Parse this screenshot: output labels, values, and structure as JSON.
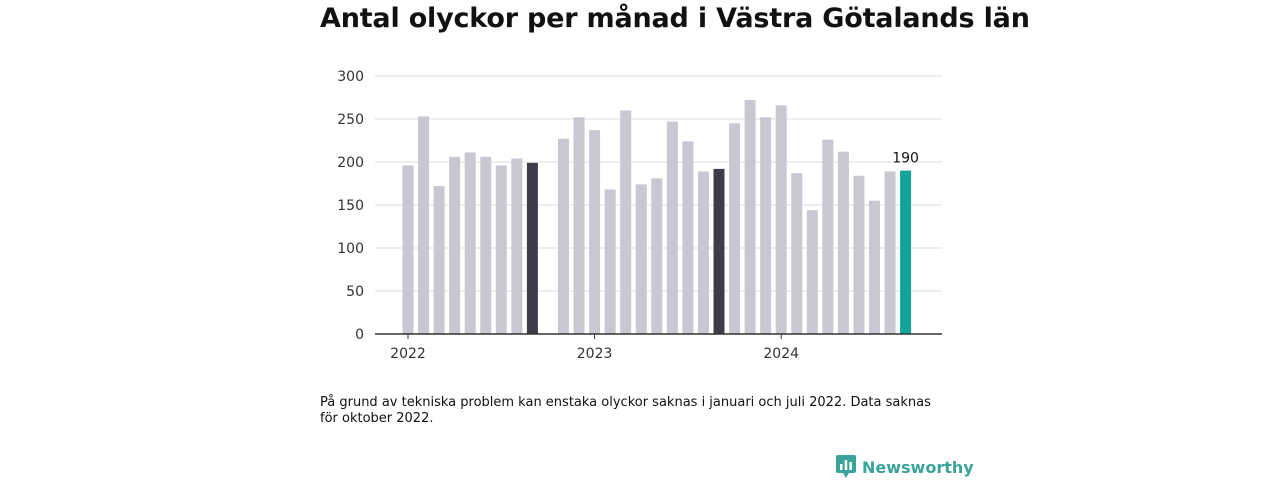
{
  "header": {
    "title": "Antal olyckor per månad i Västra Götalands län"
  },
  "footer": {
    "note": "På grund av tekniska problem kan enstaka olyckor saknas i januari och juli 2022. Data saknas för oktober 2022.",
    "brand": "Newsworthy"
  },
  "colors": {
    "bar_default": "#c9c7d2",
    "bar_highlight": "#3d3c49",
    "bar_latest": "#12a39a",
    "grid": "#dcdcdc",
    "baseline": "#333333",
    "brand": "#3aa39a"
  },
  "chart_data": {
    "type": "bar",
    "title": "Antal olyckor per månad i Västra Götalands län",
    "xlabel": "",
    "ylabel": "",
    "ylim": [
      0,
      300
    ],
    "y_ticks": [
      0,
      50,
      100,
      150,
      200,
      250,
      300
    ],
    "x_tick_labels": [
      {
        "label": "2022",
        "month": "2022-01"
      },
      {
        "label": "2023",
        "month": "2023-01"
      },
      {
        "label": "2024",
        "month": "2024-01"
      }
    ],
    "grid": true,
    "categories": [
      "2022-01",
      "2022-02",
      "2022-03",
      "2022-04",
      "2022-05",
      "2022-06",
      "2022-07",
      "2022-08",
      "2022-09",
      "2022-10",
      "2022-11",
      "2022-12",
      "2023-01",
      "2023-02",
      "2023-03",
      "2023-04",
      "2023-05",
      "2023-06",
      "2023-07",
      "2023-08",
      "2023-09",
      "2023-10",
      "2023-11",
      "2023-12",
      "2024-01",
      "2024-02",
      "2024-03",
      "2024-04",
      "2024-05",
      "2024-06",
      "2024-07",
      "2024-08",
      "2024-09",
      "2024-10"
    ],
    "values": [
      196,
      253,
      172,
      206,
      211,
      206,
      196,
      204,
      199,
      null,
      227,
      252,
      237,
      168,
      260,
      174,
      181,
      247,
      224,
      189,
      192,
      245,
      272,
      252,
      266,
      187,
      144,
      226,
      212,
      184,
      155,
      189,
      190,
      null
    ],
    "highlights": {
      "2022-09": "bar_highlight",
      "2023-09": "bar_highlight",
      "2024-09": "bar_latest"
    },
    "annotations": [
      {
        "month": "2024-09",
        "text": "190"
      }
    ]
  }
}
